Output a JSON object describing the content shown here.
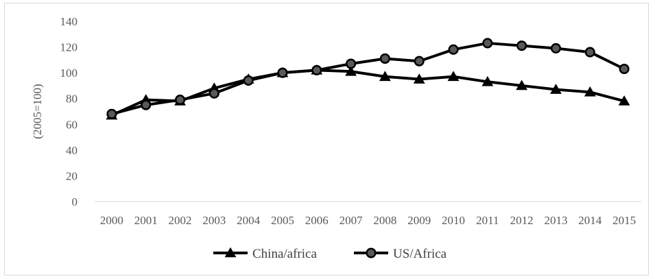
{
  "chart_data": {
    "type": "line",
    "title": "",
    "xlabel": "",
    "ylabel": "(2005=100)",
    "ylim": [
      0,
      140
    ],
    "yticks": [
      0,
      20,
      40,
      60,
      80,
      100,
      120,
      140
    ],
    "grid": false,
    "legend_position": "bottom",
    "categories": [
      "2000",
      "2001",
      "2002",
      "2003",
      "2004",
      "2005",
      "2006",
      "2007",
      "2008",
      "2009",
      "2010",
      "2011",
      "2012",
      "2013",
      "2014",
      "2015"
    ],
    "series": [
      {
        "name": "China/africa",
        "marker": "triangle",
        "color": "#000000",
        "values": [
          67,
          79,
          78,
          88,
          95,
          100,
          102,
          101,
          97,
          95,
          97,
          93,
          90,
          87,
          85,
          78
        ]
      },
      {
        "name": "US/Africa",
        "marker": "circle",
        "color": "#000000",
        "values": [
          68,
          75,
          79,
          84,
          94,
          100,
          102,
          107,
          111,
          109,
          118,
          123,
          121,
          119,
          116,
          103
        ]
      }
    ]
  }
}
